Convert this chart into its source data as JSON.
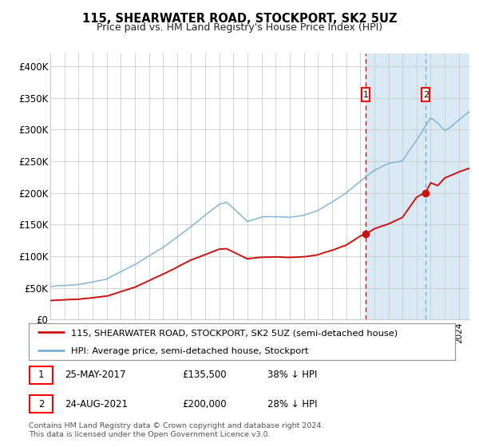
{
  "title": "115, SHEARWATER ROAD, STOCKPORT, SK2 5UZ",
  "subtitle": "Price paid vs. HM Land Registry's House Price Index (HPI)",
  "hpi_label": "HPI: Average price, semi-detached house, Stockport",
  "property_label": "115, SHEARWATER ROAD, STOCKPORT, SK2 5UZ (semi-detached house)",
  "sale1_date": "25-MAY-2017",
  "sale1_price": 135500,
  "sale1_pct": "38% ↓ HPI",
  "sale2_date": "24-AUG-2021",
  "sale2_price": 200000,
  "sale2_pct": "28% ↓ HPI",
  "sale1_year": 2017.39,
  "sale2_year": 2021.65,
  "hpi_color": "#7ab0d4",
  "property_color": "#cc1111",
  "dot_color": "#cc1111",
  "bg_highlight_color": "#daeaf5",
  "grid_color": "#cccccc",
  "footer": "Contains HM Land Registry data © Crown copyright and database right 2024.\nThis data is licensed under the Open Government Licence v3.0.",
  "ylabel_ticks": [
    0,
    50000,
    100000,
    150000,
    200000,
    250000,
    300000,
    350000,
    400000
  ],
  "ylabel_labels": [
    "£0",
    "£50K",
    "£100K",
    "£150K",
    "£200K",
    "£250K",
    "£300K",
    "£350K",
    "£400K"
  ],
  "xmin": 1995.0,
  "xmax": 2024.75,
  "ymin": 0,
  "ymax": 420000,
  "hpi_anchors_x": [
    1995,
    1997,
    1999,
    2001,
    2003,
    2005,
    2007,
    2007.5,
    2009,
    2010,
    2011,
    2012,
    2013,
    2014,
    2015,
    2016,
    2017,
    2018,
    2019,
    2020,
    2021,
    2022,
    2022.5,
    2023,
    2023.5,
    2024,
    2024.75
  ],
  "hpi_anchors_y": [
    52000,
    56000,
    65000,
    88000,
    115000,
    148000,
    183000,
    186000,
    155000,
    162000,
    163000,
    162000,
    165000,
    172000,
    185000,
    200000,
    218000,
    235000,
    246000,
    250000,
    282000,
    318000,
    310000,
    298000,
    305000,
    315000,
    328000
  ],
  "prop_anchors_x": [
    1995,
    1997,
    1999,
    2001,
    2003,
    2005,
    2007,
    2007.5,
    2009,
    2010,
    2011,
    2012,
    2013,
    2014,
    2015,
    2016,
    2017,
    2017.39,
    2018,
    2019,
    2020,
    2021,
    2021.65,
    2022,
    2022.5,
    2023,
    2024,
    2024.75
  ],
  "prop_anchors_y": [
    30000,
    33000,
    38000,
    52000,
    72000,
    95000,
    112000,
    113000,
    97000,
    100000,
    100000,
    99000,
    100000,
    103000,
    110000,
    118000,
    132000,
    135500,
    143000,
    150000,
    160000,
    192000,
    200000,
    215000,
    210000,
    222000,
    232000,
    238000
  ]
}
